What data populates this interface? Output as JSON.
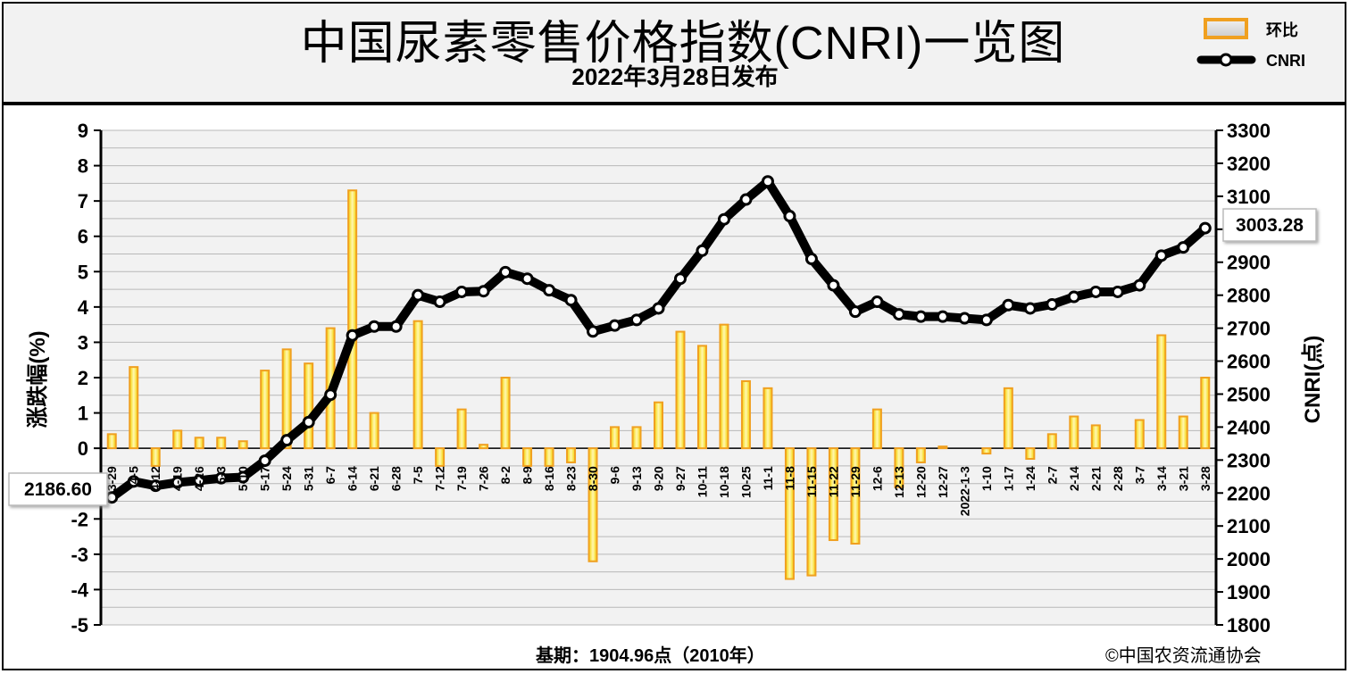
{
  "title": "中国尿素零售价格指数(CNRI)一览图",
  "subtitle": "2022年3月28日发布",
  "footer": {
    "base": "基期：1904.96点（2010年）",
    "copyright": "©中国农资流通协会"
  },
  "chart_data": {
    "type": "bar+line",
    "ylabel_left": "涨跌幅(%)",
    "ylabel_right": "CNRI(点)",
    "ylim_left": [
      -5,
      9
    ],
    "ylim_right": [
      1800,
      3300
    ],
    "yticks_left": [
      "9",
      "8",
      "7",
      "6",
      "5",
      "4",
      "3",
      "2",
      "1",
      "0",
      "-1",
      "-2",
      "-3",
      "-4",
      "-5"
    ],
    "yticks_right": [
      "3300",
      "3200",
      "3100",
      "3000",
      "2900",
      "2800",
      "2700",
      "2600",
      "2500",
      "2400",
      "2300",
      "2200",
      "2100",
      "2000",
      "1900",
      "1800"
    ],
    "grid": true,
    "legend_position": "top-right",
    "categories": [
      "3-29",
      "4-5",
      "4-12",
      "4-19",
      "4-26",
      "5-3",
      "5-10",
      "5-17",
      "5-24",
      "5-31",
      "6-7",
      "6-14",
      "6-21",
      "6-28",
      "7-5",
      "7-12",
      "7-19",
      "7-26",
      "8-2",
      "8-9",
      "8-16",
      "8-23",
      "8-30",
      "9-6",
      "9-13",
      "9-20",
      "9-27",
      "10-11",
      "10-18",
      "10-25",
      "11-1",
      "11-8",
      "11-15",
      "11-22",
      "11-29",
      "12-6",
      "12-13",
      "12-20",
      "12-27",
      "2022-1-3",
      "1-10",
      "1-17",
      "1-24",
      "2-7",
      "2-14",
      "2-21",
      "2-28",
      "3-7",
      "3-14",
      "3-21",
      "3-28"
    ],
    "series": [
      {
        "name": "环比",
        "type": "bar",
        "axis": "left",
        "color": "#f0a020",
        "values": [
          0.4,
          2.3,
          -0.5,
          0.5,
          0.3,
          0.3,
          0.2,
          2.2,
          2.8,
          2.4,
          3.4,
          7.3,
          1.0,
          0.0,
          3.6,
          -0.5,
          1.1,
          0.1,
          2.0,
          -0.5,
          -0.5,
          -0.4,
          -3.2,
          0.6,
          0.6,
          1.3,
          3.3,
          2.9,
          3.5,
          1.9,
          1.7,
          -3.7,
          -3.6,
          -2.6,
          -2.7,
          1.1,
          -1.1,
          -0.4,
          0.05,
          0.0,
          -0.15,
          1.7,
          -0.3,
          0.4,
          0.9,
          0.65,
          0.0,
          0.8,
          3.2,
          0.9,
          2.0
        ]
      },
      {
        "name": "CNRI",
        "type": "line",
        "axis": "right",
        "color": "#000000",
        "values": [
          2186.6,
          2235,
          2222,
          2232,
          2238,
          2245,
          2248,
          2298,
          2360,
          2415,
          2498,
          2678,
          2705,
          2705,
          2800,
          2780,
          2810,
          2812,
          2870,
          2850,
          2815,
          2785,
          2690,
          2708,
          2725,
          2760,
          2850,
          2935,
          3030,
          3090,
          3145,
          3040,
          2910,
          2830,
          2750,
          2780,
          2742,
          2735,
          2735,
          2730,
          2725,
          2770,
          2760,
          2772,
          2795,
          2810,
          2810,
          2830,
          2920,
          2945,
          3003.28
        ]
      }
    ],
    "annotations": {
      "first_value": "2186.60",
      "last_value": "3003.28"
    }
  }
}
